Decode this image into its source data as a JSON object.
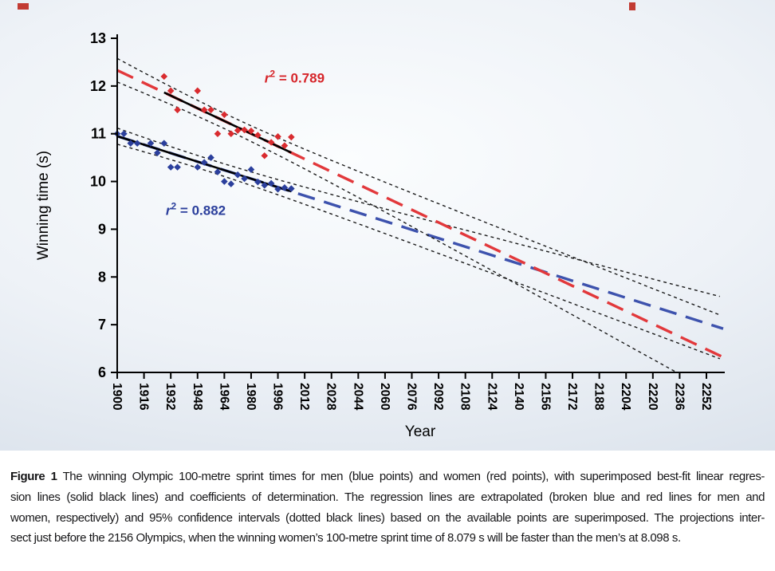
{
  "chart_data": {
    "type": "scatter",
    "title": "",
    "xlabel": "Year",
    "ylabel": "Winning time (s)",
    "xlim": [
      1900,
      2262
    ],
    "ylim": [
      6,
      13
    ],
    "grid": false,
    "x_ticks": [
      1900,
      1916,
      1932,
      1948,
      1964,
      1980,
      1996,
      2012,
      2028,
      2044,
      2060,
      2076,
      2092,
      2108,
      2124,
      2140,
      2156,
      2172,
      2188,
      2204,
      2220,
      2236,
      2252
    ],
    "y_ticks": [
      6,
      7,
      8,
      9,
      10,
      11,
      12,
      13
    ],
    "series": [
      {
        "name": "men",
        "label": "Men (blue points)",
        "color": "#2b3f9c",
        "points": [
          [
            1900,
            11.0
          ],
          [
            1904,
            11.0
          ],
          [
            1908,
            10.8
          ],
          [
            1912,
            10.8
          ],
          [
            1920,
            10.8
          ],
          [
            1924,
            10.6
          ],
          [
            1928,
            10.8
          ],
          [
            1932,
            10.3
          ],
          [
            1936,
            10.3
          ],
          [
            1948,
            10.3
          ],
          [
            1952,
            10.4
          ],
          [
            1956,
            10.5
          ],
          [
            1960,
            10.2
          ],
          [
            1964,
            10.0
          ],
          [
            1968,
            9.95
          ],
          [
            1972,
            10.14
          ],
          [
            1976,
            10.06
          ],
          [
            1980,
            10.25
          ],
          [
            1984,
            9.99
          ],
          [
            1988,
            9.92
          ],
          [
            1992,
            9.96
          ],
          [
            1996,
            9.84
          ],
          [
            2000,
            9.87
          ],
          [
            2004,
            9.85
          ]
        ]
      },
      {
        "name": "women",
        "label": "Women (red points)",
        "color": "#d92b2f",
        "points": [
          [
            1928,
            12.2
          ],
          [
            1932,
            11.9
          ],
          [
            1936,
            11.5
          ],
          [
            1948,
            11.9
          ],
          [
            1952,
            11.5
          ],
          [
            1956,
            11.5
          ],
          [
            1960,
            11.0
          ],
          [
            1964,
            11.4
          ],
          [
            1968,
            11.0
          ],
          [
            1972,
            11.07
          ],
          [
            1976,
            11.08
          ],
          [
            1980,
            11.06
          ],
          [
            1984,
            10.97
          ],
          [
            1988,
            10.54
          ],
          [
            1992,
            10.82
          ],
          [
            1996,
            10.94
          ],
          [
            2000,
            10.75
          ],
          [
            2004,
            10.93
          ]
        ]
      }
    ],
    "regressions": [
      {
        "series": "men",
        "line_color": "#3d52ad",
        "solid_color": "#000000",
        "intercept_at_1900": 10.95,
        "slope_s_per_year": -0.011141,
        "data_range": [
          1900,
          2004
        ],
        "ci_mean_year": 1952,
        "ci_a": 0.13,
        "ci_b": 0.002075,
        "r2": 0.882
      },
      {
        "series": "women",
        "line_color": "#e2383b",
        "solid_color": "#000000",
        "intercept_at_1900": 12.33,
        "slope_s_per_year": -0.016606,
        "data_range": [
          1928,
          2004
        ],
        "ci_mean_year": 1966,
        "ci_a": 0.16,
        "ci_b": 0.002846,
        "r2": 0.789
      }
    ],
    "annotations": [
      {
        "id": "r2-women",
        "var": "r",
        "sup": "2",
        "rest": " = 0.789",
        "color": "#d6252a",
        "x": 1988,
        "y": 12.07
      },
      {
        "id": "r2-men",
        "var": "r",
        "sup": "2",
        "rest": " = 0.882",
        "color": "#2b3f9c",
        "x": 1929,
        "y": 9.3
      }
    ],
    "intersection": {
      "year": 2156,
      "women_time_s": 8.079,
      "men_time_s": 8.098
    }
  },
  "caption": {
    "label": "Figure 1",
    "lines": [
      "The winning Olympic 100-metre sprint times for men (blue points) and women (red points), with superimposed best-fit linear regres-",
      "sion lines (solid black lines) and coefficients of determination. The regression lines are extrapolated (broken blue and red lines for men and",
      "women, respectively) and 95% confidence intervals (dotted black lines) based on the available points are superimposed. The projections inter-",
      "sect just before the 2156 Olympics, when the winning women’s 100-metre sprint time of 8.079 s will be faster than the men’s at 8.098 s."
    ]
  }
}
